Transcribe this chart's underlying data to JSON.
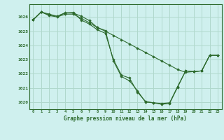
{
  "title": "Graphe pression niveau de la mer (hPa)",
  "bg_color": "#cff0ee",
  "grid_color": "#b0d8cc",
  "line_color": "#2d6a2d",
  "marker_color": "#2d6a2d",
  "xlim": [
    -0.5,
    23.5
  ],
  "ylim": [
    1019.5,
    1026.9
  ],
  "yticks": [
    1020,
    1021,
    1022,
    1023,
    1024,
    1025,
    1026
  ],
  "xticks": [
    0,
    1,
    2,
    3,
    4,
    5,
    6,
    7,
    8,
    9,
    10,
    11,
    12,
    13,
    14,
    15,
    16,
    17,
    18,
    19,
    20,
    21,
    22,
    23
  ],
  "series": [
    [
      1025.8,
      1026.35,
      1026.1,
      1026.0,
      1026.2,
      1026.2,
      1025.9,
      1025.6,
      1025.25,
      1025.0,
      1024.7,
      1024.4,
      1024.1,
      1023.8,
      1023.5,
      1023.2,
      1022.9,
      1022.6,
      1022.3,
      1022.1,
      1022.15,
      1022.2,
      1023.3,
      1023.3
    ],
    [
      1025.8,
      1026.35,
      1026.15,
      1026.05,
      1026.3,
      1026.28,
      1026.05,
      1025.75,
      1025.25,
      1025.05,
      1022.9,
      1021.8,
      1021.5,
      1020.8,
      1020.0,
      1019.95,
      1019.85,
      1019.9,
      1021.05,
      1022.2,
      1022.15,
      1022.2,
      1023.3,
      1023.3
    ],
    [
      1025.8,
      1026.35,
      1026.2,
      1026.05,
      1026.28,
      1026.32,
      1025.78,
      1025.5,
      1025.1,
      1024.85,
      1023.0,
      1021.9,
      1021.7,
      1020.7,
      1020.05,
      1019.95,
      1019.9,
      1019.95,
      1021.1,
      1022.2,
      1022.15,
      1022.2,
      1023.3,
      1023.3
    ]
  ]
}
